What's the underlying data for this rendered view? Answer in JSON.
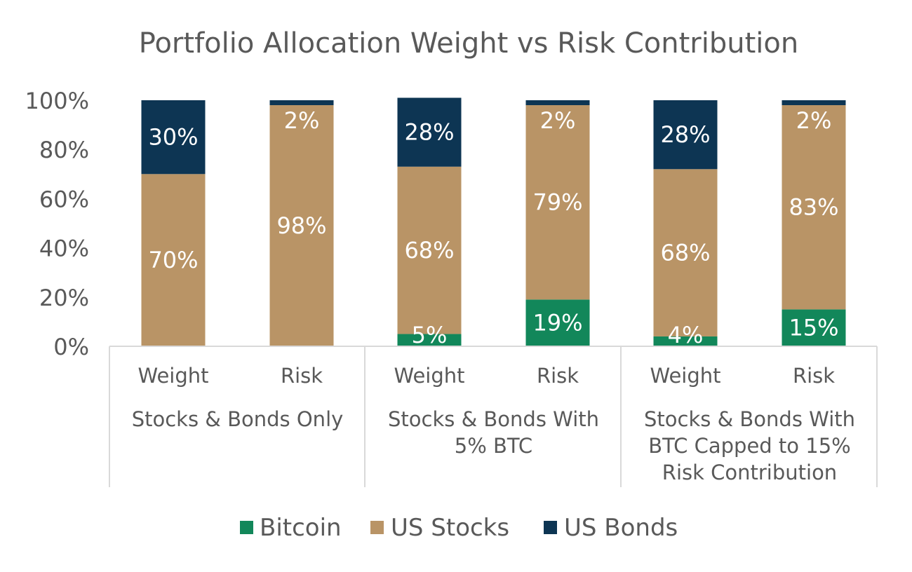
{
  "chart_data": {
    "type": "bar",
    "stacked": true,
    "title": "Portfolio Allocation Weight vs Risk Contribution",
    "xlabel": "",
    "ylabel": "",
    "ylim": [
      0,
      100
    ],
    "y_ticks": [
      "0%",
      "20%",
      "40%",
      "60%",
      "80%",
      "100%"
    ],
    "categories": [
      "Weight",
      "Risk",
      "Weight",
      "Risk",
      "Weight",
      "Risk"
    ],
    "groups": [
      {
        "label_lines": [
          "Stocks & Bonds Only"
        ],
        "span": [
          0,
          1
        ]
      },
      {
        "label_lines": [
          "Stocks & Bonds With",
          "5% BTC"
        ],
        "span": [
          2,
          3
        ]
      },
      {
        "label_lines": [
          "Stocks & Bonds With",
          "BTC Capped to 15%",
          "Risk Contribution"
        ],
        "span": [
          4,
          5
        ]
      }
    ],
    "series": [
      {
        "name": "Bitcoin",
        "color": "#12875a",
        "values": [
          0,
          0,
          5,
          19,
          4,
          15
        ],
        "labels": [
          "",
          "",
          "5%",
          "19%",
          "4%",
          "15%"
        ]
      },
      {
        "name": "US Stocks",
        "color": "#b99466",
        "values": [
          70,
          98,
          68,
          79,
          68,
          83
        ],
        "labels": [
          "70%",
          "98%",
          "68%",
          "79%",
          "68%",
          "83%"
        ]
      },
      {
        "name": "US Bonds",
        "color": "#0d3553",
        "values": [
          30,
          2,
          28,
          2,
          28,
          2
        ],
        "labels": [
          "30%",
          "2%",
          "28%",
          "2%",
          "28%",
          "2%"
        ]
      }
    ],
    "legend_position": "bottom",
    "grid": false
  }
}
